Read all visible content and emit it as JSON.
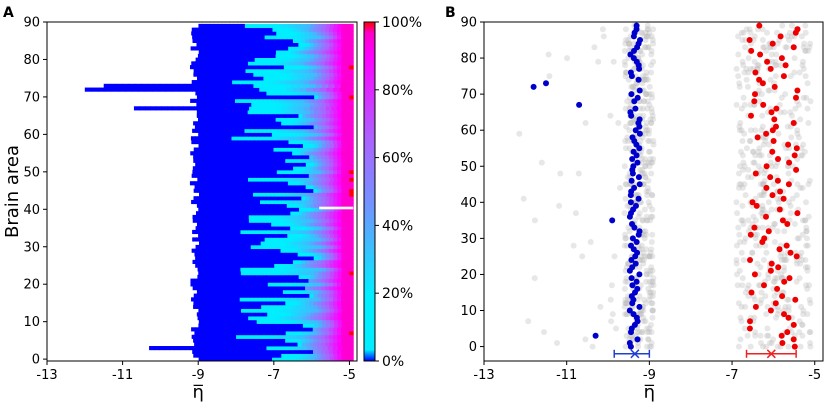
{
  "chart_data": [
    {
      "panel": "A",
      "type": "heatmap",
      "xlabel": "η̅",
      "ylabel": "Brain area",
      "xlim": [
        -13,
        -4.8
      ],
      "ylim": [
        -0.5,
        90
      ],
      "xticks": [
        "-13",
        "-11",
        "-9",
        "-7",
        "-5"
      ],
      "yticks": [
        "0",
        "10",
        "20",
        "30",
        "40",
        "50",
        "60",
        "70",
        "80",
        "90"
      ],
      "cells_per_row": 90,
      "typical_low_edge": -9.1,
      "typical_high_edge": -4.9,
      "rows_with_extended_low_edge": [
        {
          "area": 72,
          "low_edge": -12.0
        },
        {
          "area": 73,
          "low_edge": -11.5
        },
        {
          "area": 67,
          "low_edge": -10.7
        },
        {
          "area": 3,
          "low_edge": -10.3
        }
      ],
      "colorbar": {
        "ticks": [
          "0%",
          "20%",
          "40%",
          "60%",
          "80%",
          "100%"
        ],
        "colors": [
          "#0000ff",
          "#00eeff",
          "#66bbff",
          "#aa66ff",
          "#ff00ff",
          "#ff0000"
        ]
      }
    },
    {
      "panel": "B",
      "type": "scatter",
      "xlabel": "η̅",
      "xlim": [
        -13,
        -4.8
      ],
      "ylim": [
        -4,
        90
      ],
      "xticks": [
        "-13",
        "-11",
        "-9",
        "-7",
        "-5"
      ],
      "yticks": [
        "0",
        "10",
        "20",
        "30",
        "40",
        "50",
        "60",
        "70",
        "80",
        "90"
      ],
      "series": [
        {
          "color": "#0000cc",
          "mean_x": -9.35,
          "x_range": [
            -9.4,
            -9.2
          ],
          "n_points": 90
        },
        {
          "color": "#ee0000",
          "mean_x": -6.0,
          "x_range": [
            -6.6,
            -5.4
          ],
          "n_points": 90
        },
        {
          "color": "#bbbbbb",
          "x_range": [
            -12.8,
            -5.1
          ],
          "n_points": 900
        }
      ],
      "error_bars": [
        {
          "color": "#1f3fd0",
          "center": -9.35,
          "low": -9.85,
          "high": -9.0
        },
        {
          "color": "#ee2222",
          "center": -6.05,
          "low": -6.65,
          "high": -5.45
        }
      ]
    }
  ],
  "panels": {
    "a": {
      "label": "A"
    },
    "b": {
      "label": "B"
    }
  }
}
